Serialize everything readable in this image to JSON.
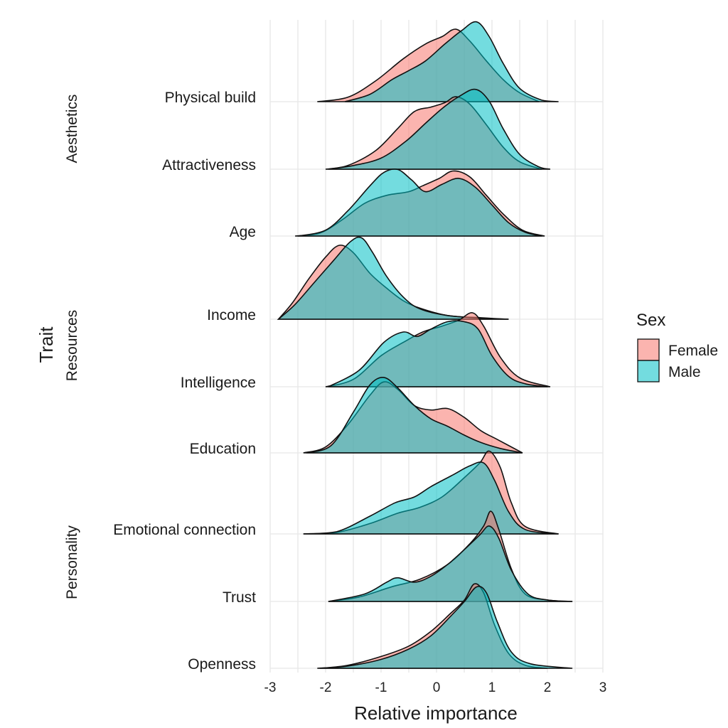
{
  "chart_data": {
    "type": "ridgeline",
    "xlabel": "Relative importance",
    "ylabel": "Trait",
    "xlim": [
      -3,
      3
    ],
    "x_ticks": [
      "-3",
      "-2",
      "-1",
      "0",
      "1",
      "2",
      "3"
    ],
    "legend": {
      "title": "Sex",
      "position": "right",
      "entries": [
        {
          "name": "Female",
          "color": "#F8766D"
        },
        {
          "name": "Male",
          "color": "#00BFC4"
        }
      ]
    },
    "groups": [
      {
        "label": "Aesthetics",
        "traits": [
          "Physical build",
          "Attractiveness"
        ]
      },
      {
        "label": "Resources",
        "traits": [
          "Age",
          "Income",
          "Intelligence",
          "Education"
        ]
      },
      {
        "label": "Personality",
        "traits": [
          "Emotional connection",
          "Trust",
          "Openness"
        ]
      }
    ],
    "series": [
      {
        "name": "Female",
        "color": "#F8766D"
      },
      {
        "name": "Male",
        "color": "#00BFC4"
      }
    ],
    "traits": [
      {
        "name": "Physical build",
        "Female": [
          [
            -2.15,
            0
          ],
          [
            -1.6,
            0.06
          ],
          [
            -1.1,
            0.28
          ],
          [
            -0.6,
            0.58
          ],
          [
            -0.2,
            0.78
          ],
          [
            0.1,
            0.88
          ],
          [
            0.35,
            0.98
          ],
          [
            0.6,
            0.82
          ],
          [
            0.9,
            0.55
          ],
          [
            1.2,
            0.3
          ],
          [
            1.5,
            0.12
          ],
          [
            1.85,
            0
          ]
        ],
        "Male": [
          [
            -1.65,
            0
          ],
          [
            -1.2,
            0.1
          ],
          [
            -0.8,
            0.3
          ],
          [
            -0.5,
            0.42
          ],
          [
            -0.2,
            0.55
          ],
          [
            0.15,
            0.78
          ],
          [
            0.45,
            0.96
          ],
          [
            0.72,
            1.08
          ],
          [
            0.95,
            0.88
          ],
          [
            1.2,
            0.52
          ],
          [
            1.5,
            0.18
          ],
          [
            1.9,
            0.02
          ],
          [
            2.2,
            0
          ]
        ]
      },
      {
        "name": "Attractiveness",
        "Female": [
          [
            -2.0,
            0
          ],
          [
            -1.6,
            0.05
          ],
          [
            -1.1,
            0.25
          ],
          [
            -0.7,
            0.55
          ],
          [
            -0.4,
            0.78
          ],
          [
            -0.1,
            0.84
          ],
          [
            0.15,
            0.9
          ],
          [
            0.35,
            0.98
          ],
          [
            0.6,
            0.88
          ],
          [
            0.9,
            0.6
          ],
          [
            1.2,
            0.3
          ],
          [
            1.5,
            0.1
          ],
          [
            1.9,
            0
          ]
        ],
        "Male": [
          [
            -1.95,
            0
          ],
          [
            -1.5,
            0.05
          ],
          [
            -1.0,
            0.15
          ],
          [
            -0.55,
            0.38
          ],
          [
            -0.2,
            0.62
          ],
          [
            0.1,
            0.82
          ],
          [
            0.4,
            0.98
          ],
          [
            0.7,
            1.08
          ],
          [
            0.95,
            0.92
          ],
          [
            1.2,
            0.55
          ],
          [
            1.5,
            0.2
          ],
          [
            1.85,
            0.03
          ],
          [
            2.05,
            0
          ]
        ]
      },
      {
        "name": "Age",
        "Female": [
          [
            -2.55,
            0
          ],
          [
            -2.1,
            0.04
          ],
          [
            -1.7,
            0.22
          ],
          [
            -1.3,
            0.44
          ],
          [
            -0.9,
            0.55
          ],
          [
            -0.5,
            0.6
          ],
          [
            -0.25,
            0.68
          ],
          [
            0.05,
            0.78
          ],
          [
            0.3,
            0.88
          ],
          [
            0.6,
            0.8
          ],
          [
            0.9,
            0.55
          ],
          [
            1.2,
            0.3
          ],
          [
            1.55,
            0.08
          ],
          [
            1.95,
            0
          ]
        ],
        "Male": [
          [
            -2.5,
            0
          ],
          [
            -2.0,
            0.08
          ],
          [
            -1.6,
            0.34
          ],
          [
            -1.2,
            0.68
          ],
          [
            -0.95,
            0.86
          ],
          [
            -0.7,
            0.9
          ],
          [
            -0.45,
            0.76
          ],
          [
            -0.2,
            0.6
          ],
          [
            0.1,
            0.7
          ],
          [
            0.4,
            0.78
          ],
          [
            0.7,
            0.66
          ],
          [
            1.0,
            0.42
          ],
          [
            1.3,
            0.18
          ],
          [
            1.6,
            0.05
          ],
          [
            1.9,
            0
          ]
        ]
      },
      {
        "name": "Income",
        "Female": [
          [
            -2.85,
            0
          ],
          [
            -2.6,
            0.22
          ],
          [
            -2.3,
            0.55
          ],
          [
            -2.0,
            0.84
          ],
          [
            -1.75,
            1.0
          ],
          [
            -1.5,
            0.9
          ],
          [
            -1.2,
            0.62
          ],
          [
            -0.9,
            0.42
          ],
          [
            -0.6,
            0.25
          ],
          [
            -0.3,
            0.15
          ],
          [
            0.2,
            0.05
          ],
          [
            0.8,
            0.02
          ],
          [
            1.3,
            0
          ]
        ],
        "Male": [
          [
            -2.85,
            0
          ],
          [
            -2.55,
            0.2
          ],
          [
            -2.2,
            0.5
          ],
          [
            -1.85,
            0.8
          ],
          [
            -1.55,
            1.05
          ],
          [
            -1.35,
            1.1
          ],
          [
            -1.15,
            0.9
          ],
          [
            -0.9,
            0.58
          ],
          [
            -0.6,
            0.3
          ],
          [
            -0.3,
            0.14
          ],
          [
            0.2,
            0.05
          ],
          [
            0.9,
            0.01
          ],
          [
            1.3,
            0
          ]
        ]
      },
      {
        "name": "Intelligence",
        "Female": [
          [
            -2.0,
            0
          ],
          [
            -1.5,
            0.1
          ],
          [
            -1.0,
            0.42
          ],
          [
            -0.6,
            0.6
          ],
          [
            -0.25,
            0.74
          ],
          [
            0.1,
            0.82
          ],
          [
            0.4,
            0.9
          ],
          [
            0.65,
            1.0
          ],
          [
            0.85,
            0.82
          ],
          [
            1.15,
            0.4
          ],
          [
            1.5,
            0.12
          ],
          [
            2.05,
            0
          ]
        ],
        "Male": [
          [
            -1.95,
            0
          ],
          [
            -1.4,
            0.22
          ],
          [
            -0.95,
            0.6
          ],
          [
            -0.6,
            0.74
          ],
          [
            -0.35,
            0.68
          ],
          [
            -0.1,
            0.78
          ],
          [
            0.2,
            0.88
          ],
          [
            0.5,
            0.88
          ],
          [
            0.75,
            0.78
          ],
          [
            1.0,
            0.42
          ],
          [
            1.3,
            0.14
          ],
          [
            1.6,
            0.04
          ],
          [
            2.0,
            0
          ]
        ]
      },
      {
        "name": "Education",
        "Female": [
          [
            -2.4,
            0
          ],
          [
            -2.0,
            0.08
          ],
          [
            -1.6,
            0.38
          ],
          [
            -1.2,
            0.78
          ],
          [
            -0.95,
            0.96
          ],
          [
            -0.7,
            0.86
          ],
          [
            -0.4,
            0.64
          ],
          [
            -0.1,
            0.58
          ],
          [
            0.2,
            0.6
          ],
          [
            0.5,
            0.48
          ],
          [
            0.8,
            0.3
          ],
          [
            1.1,
            0.18
          ],
          [
            1.55,
            0
          ]
        ],
        "Male": [
          [
            -2.35,
            0
          ],
          [
            -1.9,
            0.1
          ],
          [
            -1.5,
            0.55
          ],
          [
            -1.2,
            0.92
          ],
          [
            -0.95,
            1.02
          ],
          [
            -0.7,
            0.88
          ],
          [
            -0.4,
            0.64
          ],
          [
            -0.1,
            0.46
          ],
          [
            0.2,
            0.36
          ],
          [
            0.5,
            0.24
          ],
          [
            0.8,
            0.14
          ],
          [
            1.15,
            0.06
          ],
          [
            1.55,
            0
          ]
        ]
      },
      {
        "name": "Emotional connection",
        "Female": [
          [
            -2.4,
            0
          ],
          [
            -1.8,
            0.02
          ],
          [
            -1.2,
            0.14
          ],
          [
            -0.7,
            0.28
          ],
          [
            -0.3,
            0.36
          ],
          [
            0.1,
            0.5
          ],
          [
            0.5,
            0.76
          ],
          [
            0.78,
            0.96
          ],
          [
            0.95,
            1.12
          ],
          [
            1.15,
            0.9
          ],
          [
            1.35,
            0.42
          ],
          [
            1.6,
            0.1
          ],
          [
            2.2,
            0
          ]
        ],
        "Male": [
          [
            -2.4,
            0
          ],
          [
            -1.8,
            0.03
          ],
          [
            -1.2,
            0.24
          ],
          [
            -0.75,
            0.42
          ],
          [
            -0.4,
            0.5
          ],
          [
            -0.1,
            0.64
          ],
          [
            0.3,
            0.8
          ],
          [
            0.6,
            0.92
          ],
          [
            0.85,
            0.96
          ],
          [
            1.05,
            0.72
          ],
          [
            1.3,
            0.3
          ],
          [
            1.6,
            0.06
          ],
          [
            2.2,
            0
          ]
        ]
      },
      {
        "name": "Trust",
        "Female": [
          [
            -1.95,
            0
          ],
          [
            -1.4,
            0.06
          ],
          [
            -0.8,
            0.2
          ],
          [
            -0.3,
            0.3
          ],
          [
            0.2,
            0.5
          ],
          [
            0.6,
            0.78
          ],
          [
            0.85,
            1.02
          ],
          [
            0.98,
            1.22
          ],
          [
            1.12,
            0.98
          ],
          [
            1.35,
            0.44
          ],
          [
            1.6,
            0.1
          ],
          [
            2.0,
            0.02
          ],
          [
            2.45,
            0
          ]
        ],
        "Male": [
          [
            -1.95,
            0
          ],
          [
            -1.3,
            0.1
          ],
          [
            -0.9,
            0.26
          ],
          [
            -0.7,
            0.32
          ],
          [
            -0.4,
            0.26
          ],
          [
            -0.1,
            0.34
          ],
          [
            0.2,
            0.5
          ],
          [
            0.5,
            0.7
          ],
          [
            0.78,
            0.9
          ],
          [
            0.95,
            1.02
          ],
          [
            1.12,
            0.86
          ],
          [
            1.35,
            0.42
          ],
          [
            1.65,
            0.1
          ],
          [
            2.0,
            0.02
          ],
          [
            2.45,
            0
          ]
        ]
      },
      {
        "name": "Openness",
        "Female": [
          [
            -2.1,
            0
          ],
          [
            -1.6,
            0.04
          ],
          [
            -1.0,
            0.16
          ],
          [
            -0.5,
            0.3
          ],
          [
            -0.1,
            0.5
          ],
          [
            0.25,
            0.74
          ],
          [
            0.5,
            0.92
          ],
          [
            0.68,
            1.14
          ],
          [
            0.85,
            1.02
          ],
          [
            1.05,
            0.58
          ],
          [
            1.3,
            0.2
          ],
          [
            1.6,
            0.04
          ],
          [
            2.0,
            0
          ]
        ],
        "Male": [
          [
            -2.15,
            0
          ],
          [
            -1.6,
            0.03
          ],
          [
            -1.0,
            0.12
          ],
          [
            -0.5,
            0.26
          ],
          [
            -0.1,
            0.44
          ],
          [
            0.25,
            0.7
          ],
          [
            0.5,
            0.9
          ],
          [
            0.72,
            1.1
          ],
          [
            0.9,
            1.02
          ],
          [
            1.1,
            0.62
          ],
          [
            1.35,
            0.22
          ],
          [
            1.7,
            0.06
          ],
          [
            2.45,
            0
          ]
        ]
      }
    ]
  }
}
